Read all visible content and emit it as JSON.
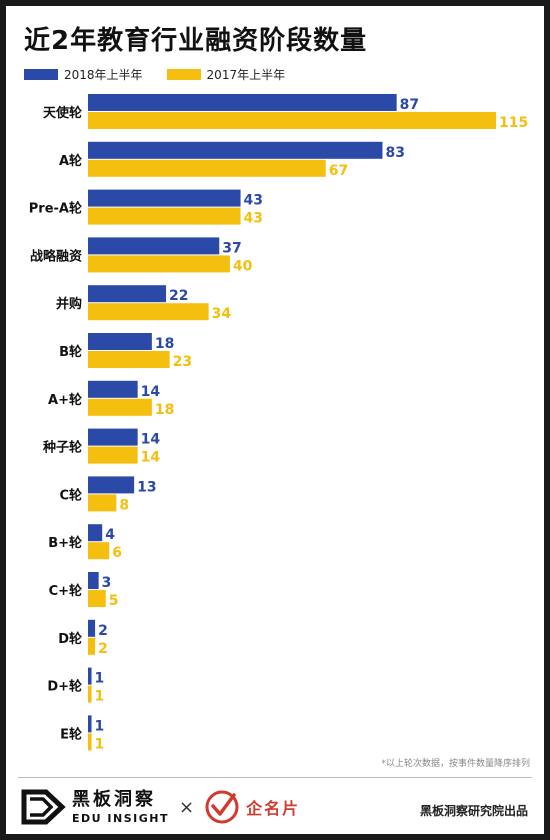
{
  "chart_data": {
    "type": "bar",
    "orientation": "horizontal",
    "title": "近2年教育行业融资阶段数量",
    "categories": [
      "天使轮",
      "A轮",
      "Pre-A轮",
      "战略融资",
      "并购",
      "B轮",
      "A+轮",
      "种子轮",
      "C轮",
      "B+轮",
      "C+轮",
      "D轮",
      "D+轮",
      "E轮"
    ],
    "series": [
      {
        "name": "2018年上半年",
        "color": "#2b4aa8",
        "values": [
          87,
          83,
          43,
          37,
          22,
          18,
          14,
          14,
          13,
          4,
          3,
          2,
          1,
          1
        ]
      },
      {
        "name": "2017年上半年",
        "color": "#f5bf0f",
        "values": [
          115,
          67,
          43,
          40,
          34,
          23,
          18,
          14,
          8,
          6,
          5,
          2,
          1,
          1
        ]
      }
    ],
    "xlim": [
      0,
      115
    ],
    "legend_position": "top-left",
    "grid": false,
    "data_labels": true
  },
  "footnote": "*以上轮次数据，按事件数量降序排列",
  "brand": {
    "name_cn": "黑板洞察",
    "name_en": "EDU INSIGHT",
    "icon": "edu-insight-logo-icon",
    "cross": "×",
    "partner_name": "企名片",
    "partner_icon": "qimingpian-checkmark-icon"
  },
  "credit": "黑板洞察研究院出品"
}
